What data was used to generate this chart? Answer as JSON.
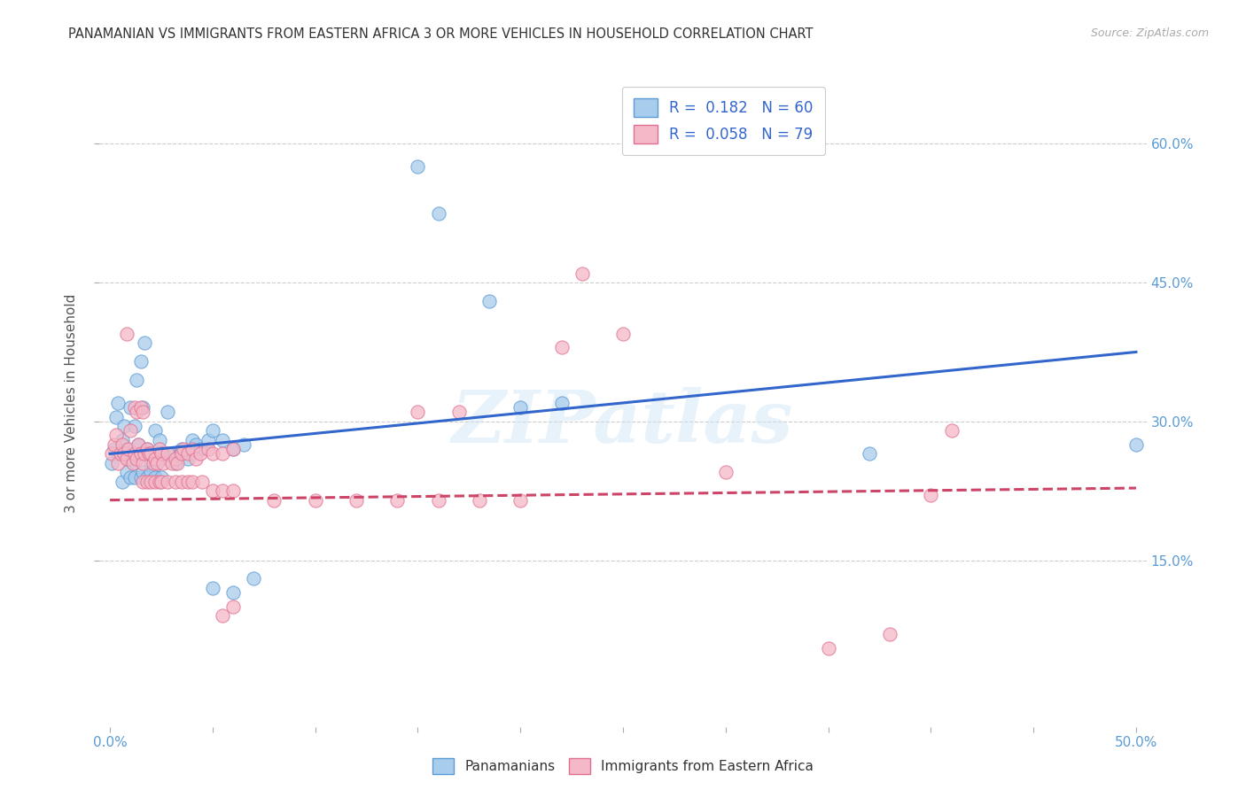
{
  "title": "PANAMANIAN VS IMMIGRANTS FROM EASTERN AFRICA 3 OR MORE VEHICLES IN HOUSEHOLD CORRELATION CHART",
  "source": "Source: ZipAtlas.com",
  "ylabel": "3 or more Vehicles in Household",
  "ytick_labels": [
    "15.0%",
    "30.0%",
    "45.0%",
    "60.0%"
  ],
  "ytick_vals": [
    0.15,
    0.3,
    0.45,
    0.6
  ],
  "xtick_vals": [
    0.0,
    0.05,
    0.1,
    0.15,
    0.2,
    0.25,
    0.3,
    0.35,
    0.4,
    0.45,
    0.5
  ],
  "xrange": [
    -0.005,
    0.505
  ],
  "yrange": [
    -0.03,
    0.67
  ],
  "legend_label1": "Panamanians",
  "legend_label2": "Immigrants from Eastern Africa",
  "R1": "0.182",
  "N1": "60",
  "R2": "0.058",
  "N2": "79",
  "watermark": "ZIPatlas",
  "color_blue_fill": "#a8ccec",
  "color_blue_edge": "#5b9bd5",
  "color_pink_fill": "#f4b8c8",
  "color_pink_edge": "#e07090",
  "line_blue": "#3366cc",
  "line_pink": "#cc4466",
  "blue_line_x0": 0.0,
  "blue_line_y0": 0.265,
  "blue_line_x1": 0.5,
  "blue_line_y1": 0.375,
  "pink_line_x0": 0.0,
  "pink_line_y0": 0.215,
  "pink_line_x1": 0.5,
  "pink_line_y1": 0.228,
  "blue_scatter": [
    [
      0.001,
      0.255
    ],
    [
      0.002,
      0.27
    ],
    [
      0.003,
      0.305
    ],
    [
      0.004,
      0.32
    ],
    [
      0.005,
      0.265
    ],
    [
      0.006,
      0.28
    ],
    [
      0.007,
      0.295
    ],
    [
      0.008,
      0.27
    ],
    [
      0.009,
      0.26
    ],
    [
      0.01,
      0.315
    ],
    [
      0.011,
      0.255
    ],
    [
      0.012,
      0.295
    ],
    [
      0.013,
      0.345
    ],
    [
      0.014,
      0.275
    ],
    [
      0.015,
      0.365
    ],
    [
      0.016,
      0.315
    ],
    [
      0.017,
      0.385
    ],
    [
      0.018,
      0.27
    ],
    [
      0.019,
      0.265
    ],
    [
      0.02,
      0.255
    ],
    [
      0.021,
      0.245
    ],
    [
      0.022,
      0.29
    ],
    [
      0.023,
      0.265
    ],
    [
      0.024,
      0.28
    ],
    [
      0.025,
      0.26
    ],
    [
      0.026,
      0.265
    ],
    [
      0.028,
      0.31
    ],
    [
      0.03,
      0.265
    ],
    [
      0.032,
      0.255
    ],
    [
      0.034,
      0.265
    ],
    [
      0.035,
      0.27
    ],
    [
      0.038,
      0.26
    ],
    [
      0.04,
      0.28
    ],
    [
      0.042,
      0.275
    ],
    [
      0.044,
      0.27
    ],
    [
      0.048,
      0.28
    ],
    [
      0.05,
      0.29
    ],
    [
      0.055,
      0.28
    ],
    [
      0.06,
      0.27
    ],
    [
      0.065,
      0.275
    ],
    [
      0.006,
      0.235
    ],
    [
      0.008,
      0.245
    ],
    [
      0.01,
      0.24
    ],
    [
      0.012,
      0.24
    ],
    [
      0.015,
      0.24
    ],
    [
      0.016,
      0.245
    ],
    [
      0.018,
      0.24
    ],
    [
      0.02,
      0.245
    ],
    [
      0.022,
      0.24
    ],
    [
      0.025,
      0.24
    ],
    [
      0.05,
      0.12
    ],
    [
      0.06,
      0.115
    ],
    [
      0.07,
      0.13
    ],
    [
      0.15,
      0.575
    ],
    [
      0.16,
      0.525
    ],
    [
      0.185,
      0.43
    ],
    [
      0.2,
      0.315
    ],
    [
      0.22,
      0.32
    ],
    [
      0.37,
      0.265
    ],
    [
      0.5,
      0.275
    ]
  ],
  "pink_scatter": [
    [
      0.001,
      0.265
    ],
    [
      0.002,
      0.275
    ],
    [
      0.003,
      0.285
    ],
    [
      0.004,
      0.255
    ],
    [
      0.005,
      0.265
    ],
    [
      0.006,
      0.275
    ],
    [
      0.007,
      0.265
    ],
    [
      0.008,
      0.26
    ],
    [
      0.009,
      0.27
    ],
    [
      0.01,
      0.29
    ],
    [
      0.011,
      0.255
    ],
    [
      0.012,
      0.265
    ],
    [
      0.013,
      0.26
    ],
    [
      0.014,
      0.275
    ],
    [
      0.015,
      0.265
    ],
    [
      0.016,
      0.255
    ],
    [
      0.017,
      0.265
    ],
    [
      0.018,
      0.27
    ],
    [
      0.019,
      0.265
    ],
    [
      0.02,
      0.265
    ],
    [
      0.021,
      0.255
    ],
    [
      0.022,
      0.26
    ],
    [
      0.023,
      0.255
    ],
    [
      0.024,
      0.27
    ],
    [
      0.025,
      0.265
    ],
    [
      0.026,
      0.255
    ],
    [
      0.028,
      0.265
    ],
    [
      0.03,
      0.255
    ],
    [
      0.032,
      0.26
    ],
    [
      0.033,
      0.255
    ],
    [
      0.035,
      0.265
    ],
    [
      0.036,
      0.27
    ],
    [
      0.038,
      0.265
    ],
    [
      0.04,
      0.27
    ],
    [
      0.042,
      0.26
    ],
    [
      0.044,
      0.265
    ],
    [
      0.048,
      0.27
    ],
    [
      0.05,
      0.265
    ],
    [
      0.055,
      0.265
    ],
    [
      0.06,
      0.27
    ],
    [
      0.008,
      0.395
    ],
    [
      0.012,
      0.315
    ],
    [
      0.013,
      0.31
    ],
    [
      0.015,
      0.315
    ],
    [
      0.016,
      0.31
    ],
    [
      0.016,
      0.235
    ],
    [
      0.018,
      0.235
    ],
    [
      0.02,
      0.235
    ],
    [
      0.022,
      0.235
    ],
    [
      0.024,
      0.235
    ],
    [
      0.025,
      0.235
    ],
    [
      0.028,
      0.235
    ],
    [
      0.032,
      0.235
    ],
    [
      0.035,
      0.235
    ],
    [
      0.038,
      0.235
    ],
    [
      0.04,
      0.235
    ],
    [
      0.045,
      0.235
    ],
    [
      0.05,
      0.225
    ],
    [
      0.055,
      0.225
    ],
    [
      0.06,
      0.225
    ],
    [
      0.08,
      0.215
    ],
    [
      0.1,
      0.215
    ],
    [
      0.12,
      0.215
    ],
    [
      0.14,
      0.215
    ],
    [
      0.16,
      0.215
    ],
    [
      0.18,
      0.215
    ],
    [
      0.2,
      0.215
    ],
    [
      0.055,
      0.09
    ],
    [
      0.06,
      0.1
    ],
    [
      0.15,
      0.31
    ],
    [
      0.17,
      0.31
    ],
    [
      0.22,
      0.38
    ],
    [
      0.23,
      0.46
    ],
    [
      0.25,
      0.395
    ],
    [
      0.3,
      0.245
    ],
    [
      0.35,
      0.055
    ],
    [
      0.38,
      0.07
    ],
    [
      0.4,
      0.22
    ],
    [
      0.41,
      0.29
    ]
  ]
}
